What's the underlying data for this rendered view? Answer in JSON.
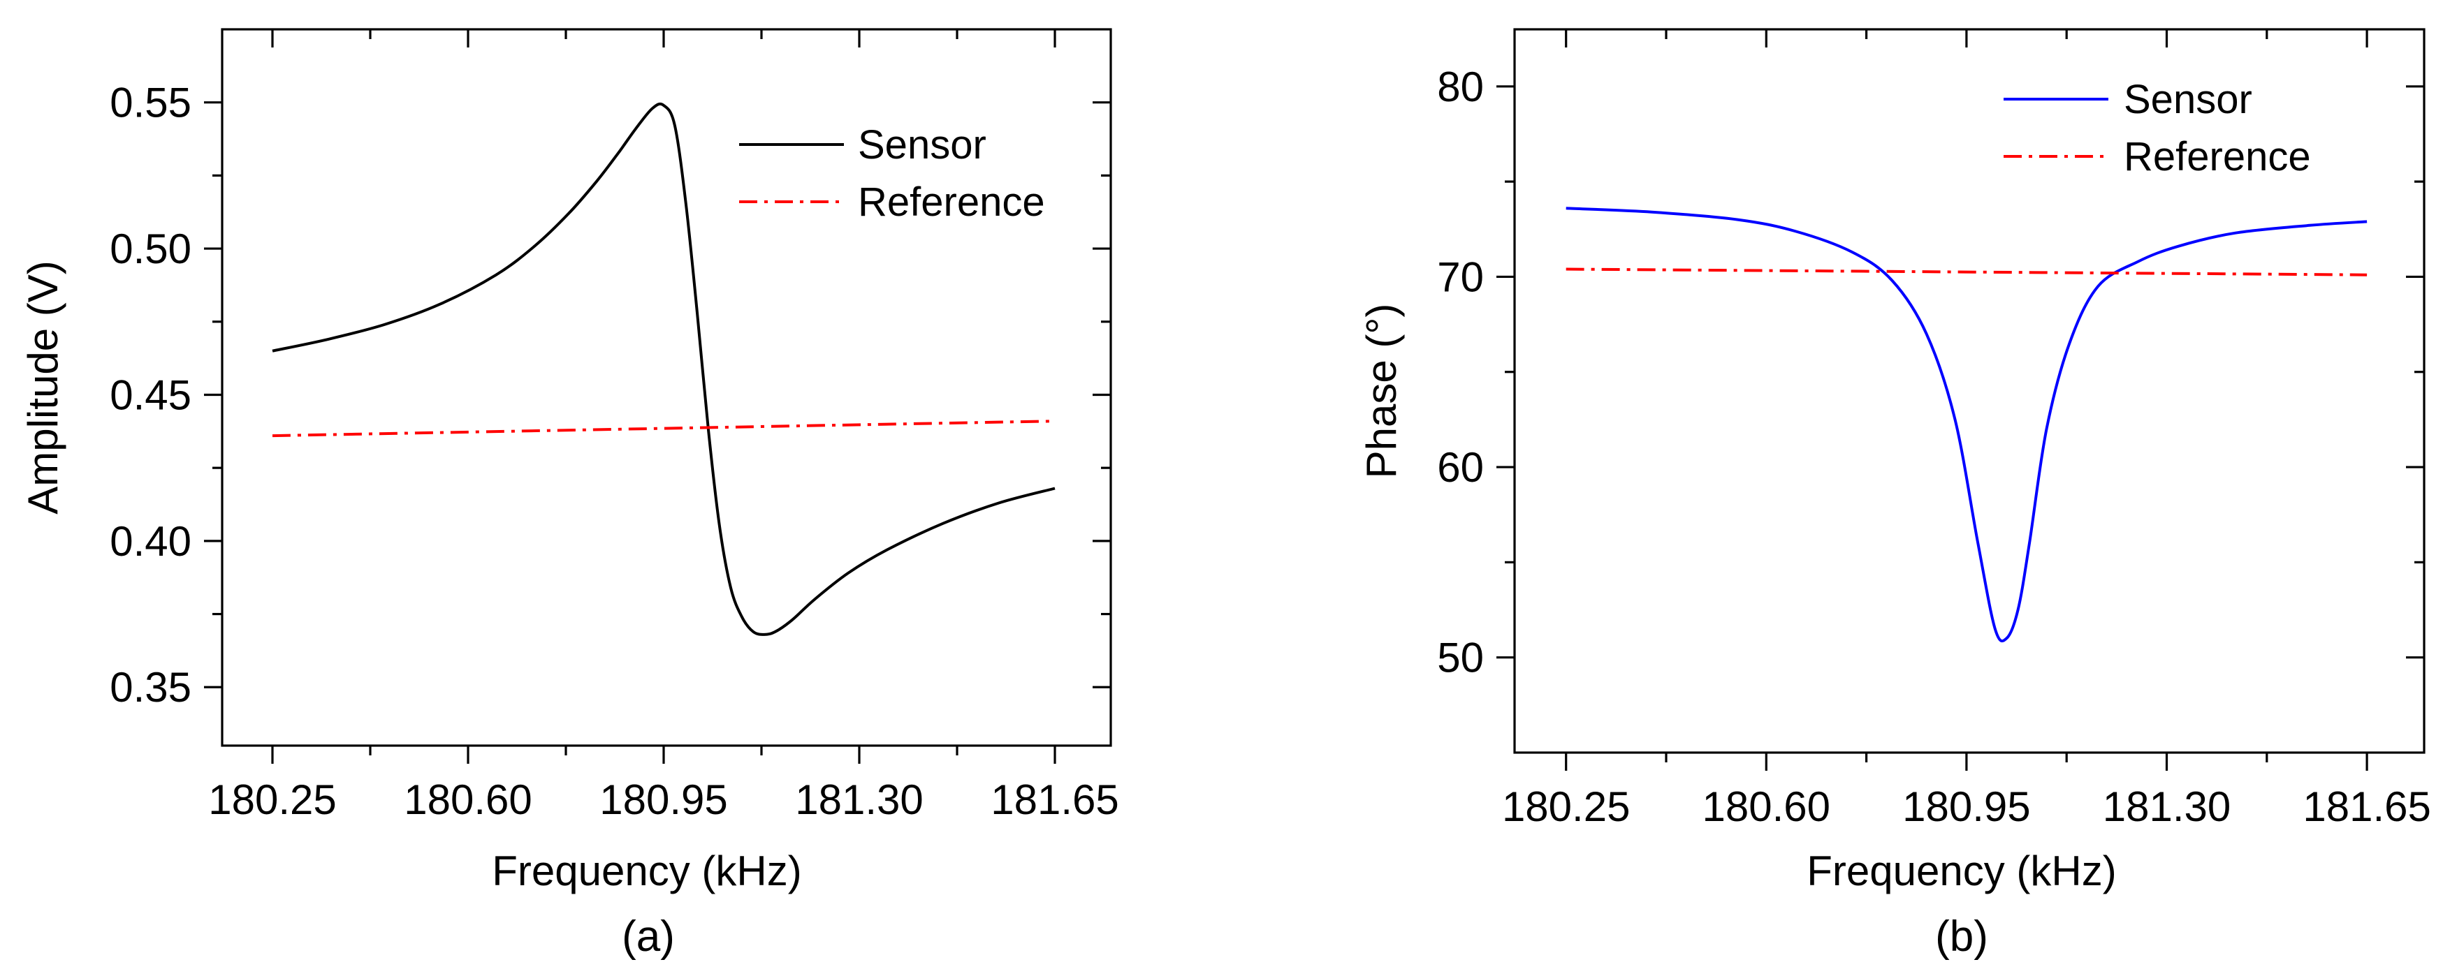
{
  "chart_data": [
    {
      "type": "line",
      "panel_label": "(a)",
      "xlabel": "Frequency (kHz)",
      "ylabel": "Amplitude (V)",
      "xlim": [
        180.16,
        181.75
      ],
      "ylim": [
        0.33,
        0.575
      ],
      "x_ticks": [
        180.25,
        180.6,
        180.95,
        181.3,
        181.65
      ],
      "x_tick_labels": [
        "180.25",
        "180.60",
        "180.95",
        "181.30",
        "181.65"
      ],
      "y_ticks": [
        0.35,
        0.4,
        0.45,
        0.5,
        0.55
      ],
      "y_tick_labels": [
        "0.35",
        "0.40",
        "0.45",
        "0.50",
        "0.55"
      ],
      "grid": false,
      "legend_position": "top-right",
      "series": [
        {
          "name": "Sensor",
          "color": "#000000",
          "dash": "solid",
          "x": [
            180.25,
            180.35,
            180.45,
            180.55,
            180.65,
            180.72,
            180.78,
            180.83,
            180.87,
            180.9,
            180.93,
            180.95,
            180.97,
            180.99,
            181.01,
            181.03,
            181.05,
            181.07,
            181.09,
            181.11,
            181.13,
            181.15,
            181.18,
            181.22,
            181.28,
            181.35,
            181.45,
            181.55,
            181.65
          ],
          "y": [
            0.465,
            0.469,
            0.474,
            0.481,
            0.491,
            0.501,
            0.512,
            0.523,
            0.533,
            0.541,
            0.548,
            0.549,
            0.542,
            0.515,
            0.478,
            0.438,
            0.405,
            0.384,
            0.374,
            0.369,
            0.368,
            0.369,
            0.373,
            0.38,
            0.389,
            0.397,
            0.406,
            0.413,
            0.418
          ]
        },
        {
          "name": "Reference",
          "color": "#ff0000",
          "dash": "dash-dot",
          "x": [
            180.25,
            181.65
          ],
          "y": [
            0.436,
            0.441
          ]
        }
      ]
    },
    {
      "type": "line",
      "panel_label": "(b)",
      "xlabel": "Frequency (kHz)",
      "ylabel": "Phase (°)",
      "xlim": [
        180.16,
        181.75
      ],
      "ylim": [
        45,
        83
      ],
      "x_ticks": [
        180.25,
        180.6,
        180.95,
        181.3,
        181.65
      ],
      "x_tick_labels": [
        "180.25",
        "180.60",
        "180.95",
        "181.30",
        "181.65"
      ],
      "y_ticks": [
        50,
        60,
        70,
        80
      ],
      "y_tick_labels": [
        "50",
        "60",
        "70",
        "80"
      ],
      "grid": false,
      "legend_position": "top-right",
      "series": [
        {
          "name": "Sensor",
          "color": "#0000ff",
          "dash": "solid",
          "x": [
            180.25,
            180.4,
            180.55,
            180.65,
            180.75,
            180.82,
            180.88,
            180.93,
            180.97,
            181.0,
            181.02,
            181.04,
            181.06,
            181.09,
            181.13,
            181.18,
            181.25,
            181.32,
            181.42,
            181.55,
            181.65
          ],
          "y": [
            73.6,
            73.4,
            73.0,
            72.4,
            71.3,
            69.8,
            67.0,
            62.5,
            56.0,
            51.5,
            51.0,
            52.5,
            56.0,
            62.0,
            66.5,
            69.5,
            70.8,
            71.6,
            72.3,
            72.7,
            72.9
          ]
        },
        {
          "name": "Reference",
          "color": "#ff0000",
          "dash": "dash-dot",
          "x": [
            180.25,
            181.65
          ],
          "y": [
            70.4,
            70.1
          ]
        }
      ]
    }
  ]
}
